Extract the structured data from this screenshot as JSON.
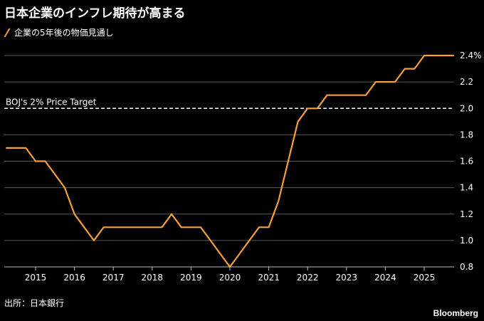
{
  "title": "日本企業のインフレ期待が高まる",
  "legend": {
    "label": "企業の5年後の物価見通し",
    "color": "#f5a033"
  },
  "source": "出所：日本銀行",
  "brand": "Bloomberg",
  "chart_data": {
    "type": "line",
    "title": "日本企業のインフレ期待が高まる",
    "xlabel": "",
    "ylabel": "",
    "ylim": [
      0.8,
      2.4
    ],
    "xlim": [
      2014.25,
      2025.85
    ],
    "grid": true,
    "legend_position": "top-left",
    "yticks": [
      0.8,
      1.0,
      1.2,
      1.4,
      1.6,
      1.8,
      2.0,
      2.2,
      2.4
    ],
    "ytick_labels": [
      "0.8",
      "1.0",
      "1.2",
      "1.4",
      "1.6",
      "1.8",
      "2.0",
      "2.2",
      "2.4%"
    ],
    "xticks": [
      2015,
      2016,
      2017,
      2018,
      2019,
      2020,
      2021,
      2022,
      2023,
      2024,
      2025
    ],
    "xtick_labels": [
      "2015",
      "2016",
      "2017",
      "2018",
      "2019",
      "2020",
      "2021",
      "2022",
      "2023",
      "2024",
      "2025"
    ],
    "reference_line": {
      "y": 2.0,
      "label": "BOJ's 2% Price Target",
      "style": "dashed",
      "color": "#ffffff"
    },
    "series": [
      {
        "name": "企業の5年後の物価見通し",
        "color": "#f5a033",
        "x": [
          2014.25,
          2014.75,
          2015.0,
          2015.25,
          2015.5,
          2015.75,
          2016.0,
          2016.25,
          2016.5,
          2016.75,
          2017.0,
          2017.25,
          2017.5,
          2017.75,
          2018.0,
          2018.25,
          2018.5,
          2018.75,
          2019.0,
          2019.25,
          2019.5,
          2019.75,
          2020.0,
          2020.25,
          2020.5,
          2020.75,
          2021.0,
          2021.25,
          2021.5,
          2021.75,
          2022.0,
          2022.25,
          2022.5,
          2022.75,
          2023.0,
          2023.25,
          2023.5,
          2023.75,
          2024.0,
          2024.25,
          2024.5,
          2024.75,
          2025.0,
          2025.25,
          2025.5,
          2025.75
        ],
        "values": [
          1.7,
          1.7,
          1.6,
          1.6,
          1.5,
          1.4,
          1.2,
          1.1,
          1.0,
          1.1,
          1.1,
          1.1,
          1.1,
          1.1,
          1.1,
          1.1,
          1.2,
          1.1,
          1.1,
          1.1,
          1.0,
          0.9,
          0.8,
          0.9,
          1.0,
          1.1,
          1.1,
          1.3,
          1.6,
          1.9,
          2.0,
          2.0,
          2.1,
          2.1,
          2.1,
          2.1,
          2.1,
          2.2,
          2.2,
          2.2,
          2.3,
          2.3,
          2.4,
          2.4,
          2.4,
          2.4
        ]
      }
    ]
  }
}
